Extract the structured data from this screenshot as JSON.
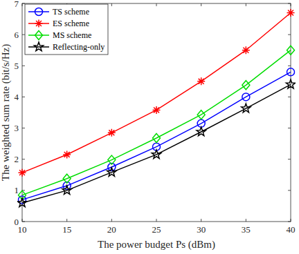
{
  "chart_data": {
    "type": "line",
    "x_label": "The power budget Ps (dBm)",
    "y_label": "The weighted sum rate (bit/s/Hz)",
    "x": [
      10,
      15,
      20,
      25,
      30,
      35,
      40
    ],
    "xlim": [
      10,
      40
    ],
    "xticks": [
      10,
      15,
      20,
      25,
      30,
      35,
      40
    ],
    "ylim": [
      0,
      7
    ],
    "yticks": [
      0,
      1,
      2,
      3,
      4,
      5,
      6,
      7
    ],
    "grid": false,
    "legend": "top-left",
    "series": [
      {
        "name": "TS scheme",
        "color": "#0000ff",
        "marker": "circle",
        "line_style": "solid",
        "values": [
          0.7,
          1.15,
          1.75,
          2.4,
          3.15,
          4.0,
          4.8
        ]
      },
      {
        "name": "ES scheme",
        "color": "#ff0000",
        "marker": "asterisk",
        "line_style": "solid",
        "values": [
          1.57,
          2.15,
          2.85,
          3.58,
          4.5,
          5.5,
          6.7
        ]
      },
      {
        "name": "MS scheme",
        "color": "#00dd00",
        "marker": "diamond",
        "line_style": "solid",
        "values": [
          0.85,
          1.38,
          1.98,
          2.68,
          3.43,
          4.38,
          5.5
        ]
      },
      {
        "name": "Reflecting-only",
        "color": "#000000",
        "marker": "star",
        "line_style": "solid",
        "values": [
          0.6,
          1.0,
          1.58,
          2.15,
          2.88,
          3.63,
          4.4
        ]
      }
    ]
  }
}
